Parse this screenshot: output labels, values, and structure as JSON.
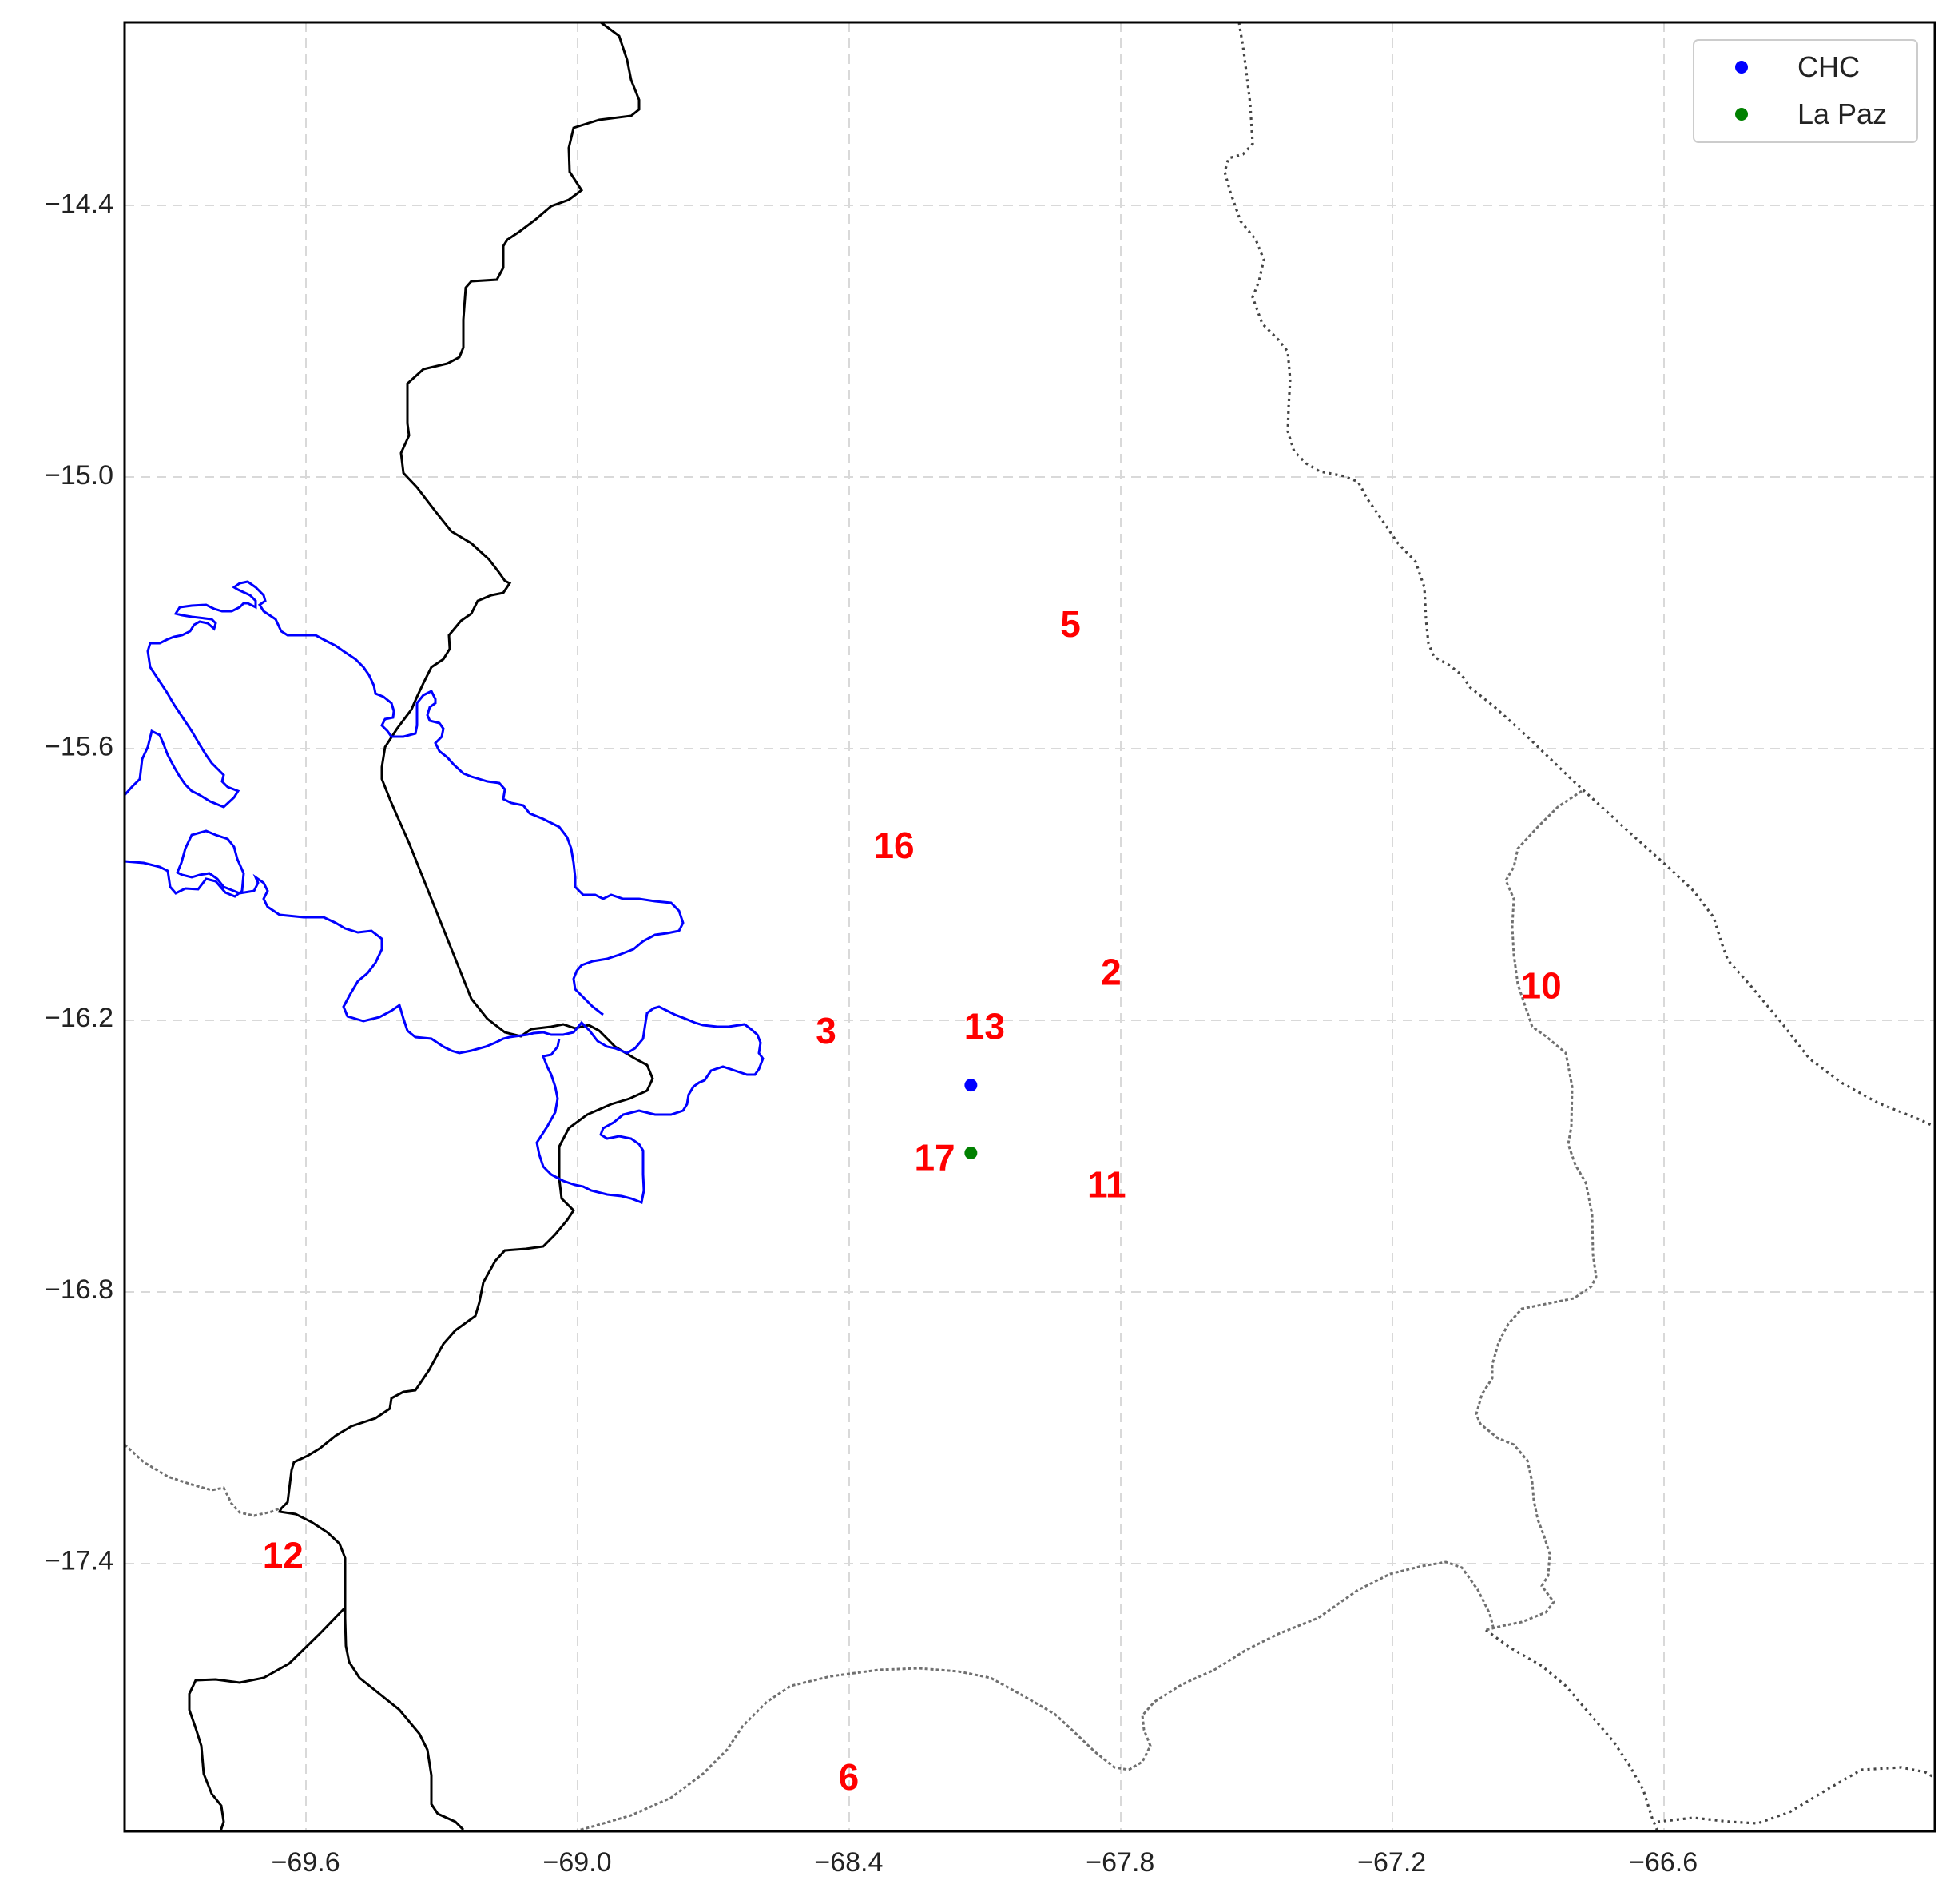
{
  "map": {
    "x_ticks": [
      "−69.6",
      "−69.0",
      "−68.4",
      "−67.8",
      "−67.2",
      "−66.6"
    ],
    "y_ticks": [
      "−14.4",
      "−15.0",
      "−15.6",
      "−16.2",
      "−16.8",
      "−17.4"
    ],
    "station_labels": [
      "5",
      "16",
      "2",
      "10",
      "3",
      "13",
      "17",
      "11",
      "12",
      "6"
    ],
    "legend": [
      {
        "label": "CHC",
        "color": "#0000ff"
      },
      {
        "label": "La Paz",
        "color": "#008000"
      }
    ]
  },
  "chart_data": {
    "type": "scatter",
    "series": [
      {
        "name": "CHC",
        "color": "#0000ff",
        "points": [
          {
            "lon": -68.13,
            "lat": -16.35
          }
        ]
      },
      {
        "name": "La Paz",
        "color": "#008000",
        "points": [
          {
            "lon": -68.13,
            "lat": -16.5
          }
        ]
      }
    ],
    "annotations": [
      {
        "text": "5",
        "lon": -67.91,
        "lat": -15.33
      },
      {
        "text": "16",
        "lon": -68.3,
        "lat": -15.82
      },
      {
        "text": "2",
        "lon": -67.82,
        "lat": -16.1
      },
      {
        "text": "10",
        "lon": -66.87,
        "lat": -16.13
      },
      {
        "text": "3",
        "lon": -68.45,
        "lat": -16.23
      },
      {
        "text": "13",
        "lon": -68.1,
        "lat": -16.22
      },
      {
        "text": "17",
        "lon": -68.21,
        "lat": -16.51
      },
      {
        "text": "11",
        "lon": -67.83,
        "lat": -16.57
      },
      {
        "text": "12",
        "lon": -69.65,
        "lat": -17.39
      },
      {
        "text": "6",
        "lon": -68.4,
        "lat": -17.88
      }
    ],
    "xticks": [
      -69.6,
      -69.0,
      -68.4,
      -67.8,
      -67.2,
      -66.6
    ],
    "yticks": [
      -14.4,
      -15.0,
      -15.6,
      -16.2,
      -16.8,
      -17.4
    ],
    "xlim": [
      -70.0,
      -66.0
    ],
    "ylim": [
      -18.0,
      -14.0
    ],
    "grid": true,
    "legend_position": "top-right"
  }
}
